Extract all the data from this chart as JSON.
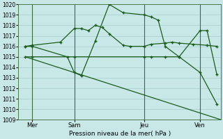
{
  "background_color": "#c8e8e8",
  "grid_color": "#a8cccc",
  "line_color": "#1a5c1a",
  "xlabel": "Pression niveau de la mer( hPa )",
  "ylim": [
    1009,
    1020
  ],
  "xlim_left": 0,
  "xlim_right": 14.5,
  "xtick_labels": [
    "Mer",
    "Sam",
    "Jeu",
    "Ven"
  ],
  "xtick_positions": [
    1,
    4,
    9,
    13
  ],
  "vline_positions": [
    1,
    4,
    9,
    13
  ],
  "line1_x": [
    0.5,
    1.0,
    3.0,
    4.0,
    4.5,
    5.0,
    5.5,
    6.0,
    6.5,
    7.5,
    8.0,
    9.0,
    9.5,
    10.5,
    11.0,
    11.5,
    12.5,
    13.5,
    14.2
  ],
  "line1_y": [
    1016.0,
    1016.1,
    1016.4,
    1017.7,
    1017.7,
    1017.5,
    1018.0,
    1017.8,
    1017.2,
    1016.1,
    1016.0,
    1016.0,
    1016.2,
    1016.3,
    1016.4,
    1016.3,
    1016.2,
    1016.1,
    1016.0
  ],
  "line2_x": [
    0.5,
    1.0,
    3.5,
    4.0,
    4.5,
    5.5,
    6.5,
    7.5,
    9.0,
    9.5,
    10.0,
    10.5,
    11.5,
    13.0,
    13.5,
    14.2
  ],
  "line2_y": [
    1016.0,
    1016.0,
    1015.0,
    1013.5,
    1013.2,
    1016.5,
    1020.0,
    1019.2,
    1019.0,
    1018.8,
    1018.5,
    1016.0,
    1015.0,
    1017.5,
    1017.5,
    1013.3
  ],
  "line3_x": [
    0.5,
    1.0,
    4.0,
    9.0,
    9.5,
    10.5,
    11.5,
    13.0,
    14.2
  ],
  "line3_y": [
    1015.0,
    1015.0,
    1015.0,
    1015.0,
    1015.0,
    1015.0,
    1015.0,
    1013.5,
    1010.5
  ],
  "line4_x": [
    0.5,
    14.5
  ],
  "line4_y": [
    1015.0,
    1009.0
  ]
}
